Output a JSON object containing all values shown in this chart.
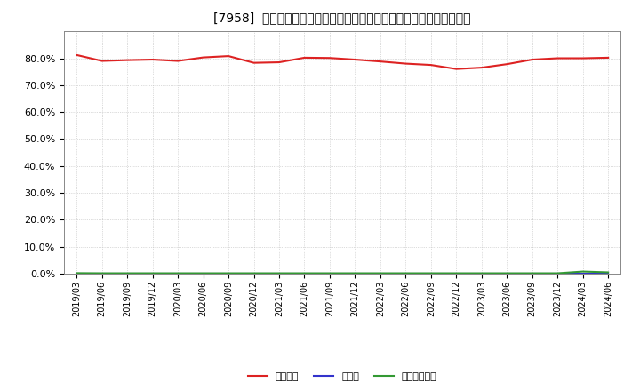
{
  "title": "[7958]  自己資本、のれん、繰延税金資産の総資産に対する比率の推移",
  "x_labels": [
    "2019/03",
    "2019/06",
    "2019/09",
    "2019/12",
    "2020/03",
    "2020/06",
    "2020/09",
    "2020/12",
    "2021/03",
    "2021/06",
    "2021/09",
    "2021/12",
    "2022/03",
    "2022/06",
    "2022/09",
    "2022/12",
    "2023/03",
    "2023/06",
    "2023/09",
    "2023/12",
    "2024/03",
    "2024/06"
  ],
  "jikoshihon": [
    81.2,
    79.0,
    79.3,
    79.5,
    79.0,
    80.3,
    80.8,
    78.3,
    78.5,
    80.2,
    80.1,
    79.5,
    78.8,
    78.0,
    77.5,
    76.0,
    76.5,
    77.8,
    79.5,
    80.0,
    80.0,
    80.2
  ],
  "noren": [
    0.0,
    0.0,
    0.0,
    0.0,
    0.0,
    0.0,
    0.0,
    0.0,
    0.0,
    0.0,
    0.0,
    0.0,
    0.0,
    0.0,
    0.0,
    0.0,
    0.0,
    0.0,
    0.0,
    0.0,
    0.0,
    0.0
  ],
  "kurinobezekin": [
    0.2,
    0.15,
    0.15,
    0.15,
    0.15,
    0.15,
    0.15,
    0.15,
    0.15,
    0.15,
    0.15,
    0.15,
    0.15,
    0.15,
    0.15,
    0.15,
    0.15,
    0.15,
    0.15,
    0.15,
    0.8,
    0.5
  ],
  "color_jikoshihon": "#dd2222",
  "color_noren": "#3333cc",
  "color_kurinobezekin": "#339933",
  "ylim": [
    0,
    90
  ],
  "yticks": [
    0,
    10,
    20,
    30,
    40,
    50,
    60,
    70,
    80
  ],
  "background_color": "#ffffff",
  "plot_bg_color": "#ffffff",
  "grid_color": "#bbbbbb",
  "legend_jikoshihon": "自己資本",
  "legend_noren": "のれん",
  "legend_kurinobezekin": "繰延税金資産"
}
